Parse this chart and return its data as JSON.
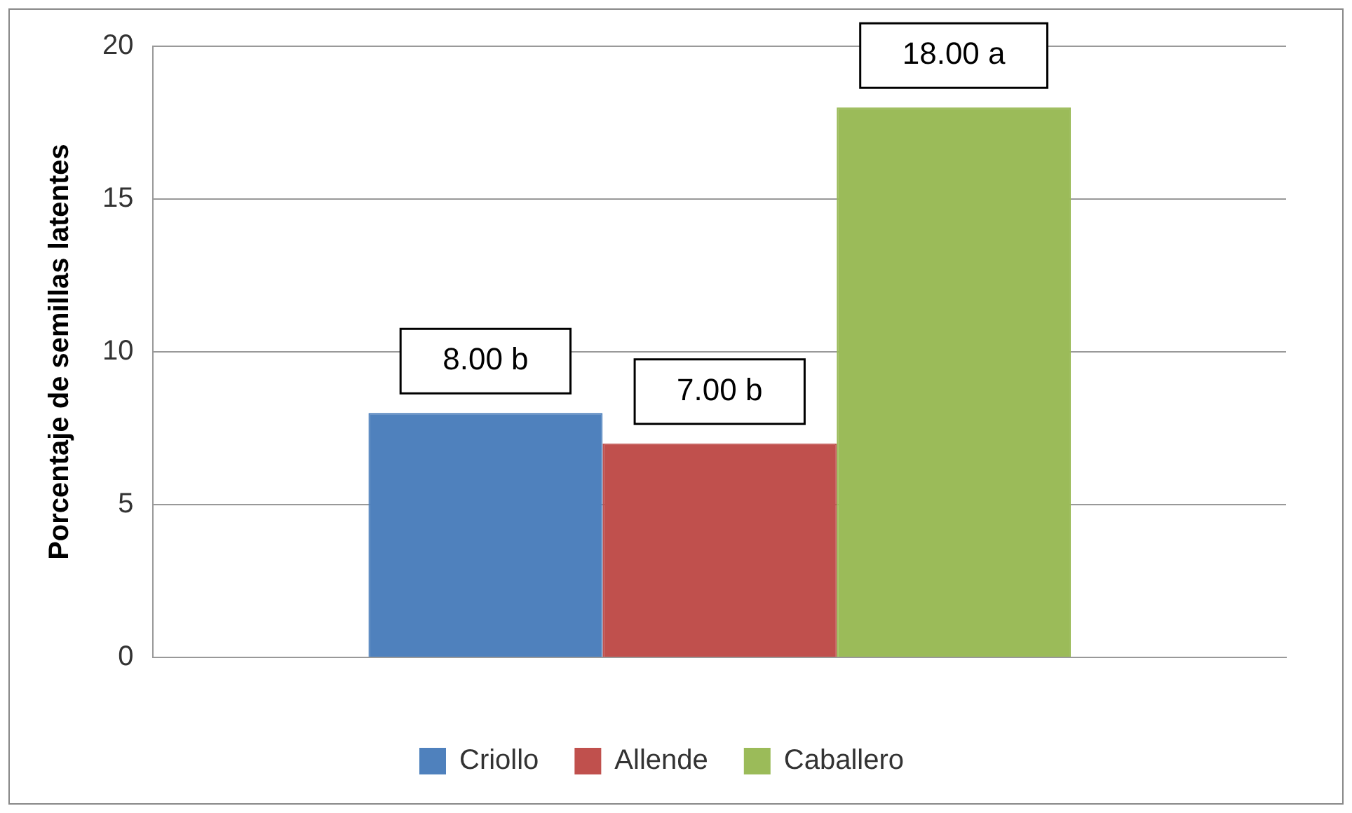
{
  "chart_data": {
    "type": "bar",
    "ylabel": "Porcentaje de semillas latentes",
    "categories": [
      null
    ],
    "series": [
      {
        "name": "Criollo",
        "color": "#4f81bd",
        "values": [
          8
        ],
        "value_labels": [
          "8.00 b"
        ]
      },
      {
        "name": "Allende",
        "color": "#c0504d",
        "values": [
          7
        ],
        "value_labels": [
          "7.00 b"
        ]
      },
      {
        "name": "Caballero",
        "color": "#9bbb59",
        "values": [
          18
        ],
        "value_labels": [
          "18.00 a"
        ]
      }
    ],
    "ylim": [
      0,
      20
    ],
    "yticks": [
      0,
      5,
      10,
      15,
      20
    ],
    "grid": "y",
    "legend": "bottom"
  }
}
